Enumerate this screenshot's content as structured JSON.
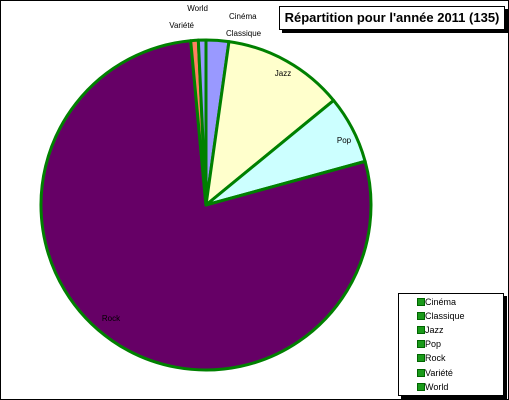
{
  "chart_data": {
    "type": "pie",
    "title": "Répartition pour l'année 2011 (135)",
    "slices": [
      {
        "label": "Cinéma",
        "value": 0,
        "color": "#8888ff"
      },
      {
        "label": "Classique",
        "value": 3,
        "color": "#9999ff"
      },
      {
        "label": "Jazz",
        "value": 16,
        "color": "#ffffcc"
      },
      {
        "label": "Pop",
        "value": 9,
        "color": "#ccffff"
      },
      {
        "label": "Rock",
        "value": 105,
        "color": "#660066"
      },
      {
        "label": "Variété",
        "value": 1,
        "color": "#ff8060"
      },
      {
        "label": "World",
        "value": 1,
        "color": "#9999ff"
      }
    ],
    "slice_border_color": "#008000",
    "legend": {
      "placement": "bottom-right",
      "entries": [
        "Cinéma",
        "Classique",
        "Jazz",
        "Pop",
        "Rock",
        "Variété",
        "World"
      ]
    }
  }
}
